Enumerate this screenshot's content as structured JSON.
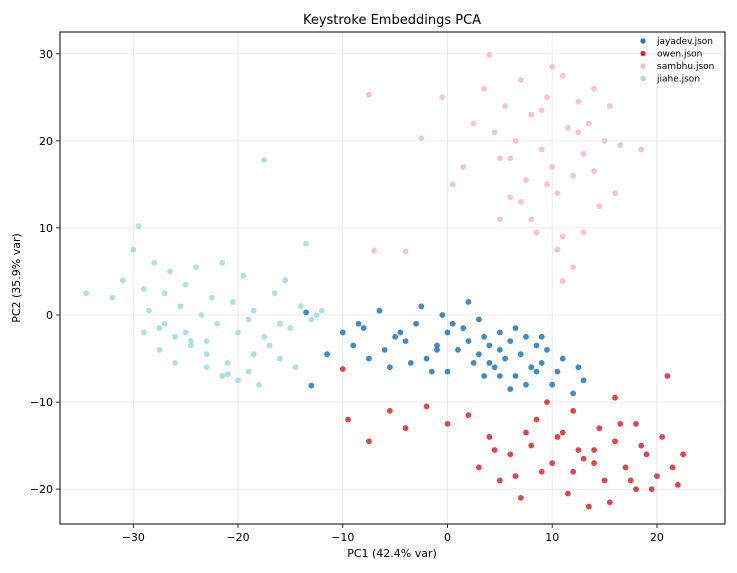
{
  "chart_data": {
    "type": "scatter",
    "title": "Keystroke Embeddings PCA",
    "xlabel": "PC1 (42.4% var)",
    "ylabel": "PC2 (35.9% var)",
    "xlim": [
      -37,
      26.5
    ],
    "ylim": [
      -24,
      32.5
    ],
    "xticks": [
      -30,
      -20,
      -10,
      0,
      10,
      20
    ],
    "xtick_labels": [
      "−30",
      "−20",
      "−10",
      "0",
      "10",
      "20"
    ],
    "yticks": [
      -20,
      -10,
      0,
      10,
      20,
      30
    ],
    "ytick_labels": [
      "−20",
      "−10",
      "0",
      "10",
      "20",
      "30"
    ],
    "grid": true,
    "legend_position": "top-right",
    "series": [
      {
        "name": "jayadev.json",
        "color": "#1f77b4",
        "x": [
          -13.0,
          -13.5,
          -10.0,
          -9.0,
          -8.0,
          -6.0,
          -5.0,
          -4.0,
          -3.0,
          -2.0,
          -1.0,
          0.0,
          0.0,
          1.0,
          1.5,
          2.0,
          2.5,
          3.0,
          3.5,
          4.0,
          4.5,
          5.0,
          5.0,
          5.5,
          6.0,
          6.5,
          7.0,
          7.5,
          8.0,
          8.5,
          9.0,
          9.5,
          10.0,
          10.5,
          11.0,
          12.0,
          13.0,
          -11.5,
          -8.5,
          -7.5,
          -6.5,
          -5.5,
          -4.5,
          -3.5,
          -2.5,
          -1.5,
          -0.5,
          0.5,
          2.0,
          3.5,
          6.0,
          9.0,
          12.5,
          -1.0,
          3.0,
          4.0,
          5.0,
          6.5,
          7.5,
          8.5
        ],
        "y": [
          -8.1,
          0.3,
          -2.0,
          -3.5,
          -1.5,
          -4.0,
          -2.5,
          -3.0,
          -1.0,
          -5.0,
          -3.5,
          -2.0,
          -6.5,
          -4.0,
          -1.5,
          -3.0,
          -5.5,
          -4.5,
          -2.5,
          -3.5,
          -6.0,
          -4.0,
          -2.0,
          -5.0,
          -3.0,
          -7.0,
          -4.5,
          -2.5,
          -6.0,
          -3.5,
          -5.5,
          -4.0,
          -8.0,
          -6.5,
          -5.0,
          -9.0,
          -7.5,
          -4.5,
          -1.0,
          -5.0,
          0.5,
          -6.0,
          -2.0,
          -5.5,
          1.0,
          -6.5,
          0.0,
          -1.0,
          1.5,
          -7.0,
          -8.5,
          -2.5,
          -6.0,
          -4.0,
          -0.5,
          -5.5,
          -7.0,
          -1.5,
          -8.0,
          -6.5
        ]
      },
      {
        "name": "owen.json",
        "color": "#d62728",
        "x": [
          -10.0,
          -9.5,
          -7.5,
          -5.5,
          -4.0,
          -2.0,
          0.0,
          2.0,
          4.0,
          6.0,
          8.0,
          10.0,
          11.0,
          12.0,
          13.0,
          14.0,
          15.0,
          16.0,
          17.0,
          18.0,
          19.0,
          20.0,
          21.0,
          22.0,
          22.5,
          3.0,
          5.0,
          7.0,
          9.0,
          11.5,
          13.5,
          15.5,
          17.5,
          19.5,
          21.5,
          8.5,
          10.5,
          12.5,
          14.5,
          16.5,
          18.5,
          6.5,
          9.5,
          12.0,
          14.0,
          16.0,
          18.0,
          20.5,
          4.5,
          7.5
        ],
        "y": [
          -6.2,
          -12.0,
          -14.5,
          -11.0,
          -13.0,
          -10.5,
          -12.5,
          -11.5,
          -14.0,
          -16.0,
          -15.0,
          -17.0,
          -13.5,
          -18.0,
          -16.5,
          -15.5,
          -19.0,
          -14.5,
          -17.5,
          -20.0,
          -16.0,
          -18.5,
          -7.0,
          -19.5,
          -16.0,
          -17.5,
          -19.0,
          -21.0,
          -18.0,
          -20.5,
          -22.0,
          -21.5,
          -19.0,
          -20.0,
          -17.5,
          -12.0,
          -14.0,
          -15.5,
          -13.0,
          -12.5,
          -15.0,
          -18.5,
          -10.0,
          -11.0,
          -17.0,
          -9.5,
          -12.5,
          -14.0,
          -15.5,
          -13.5
        ]
      },
      {
        "name": "sambhu.json",
        "color": "#f7b6d2",
        "x": [
          -7.5,
          -7.0,
          -4.0,
          -2.5,
          -0.5,
          0.5,
          1.5,
          2.5,
          3.5,
          4.0,
          4.5,
          5.0,
          5.5,
          6.0,
          6.5,
          7.0,
          7.5,
          8.0,
          8.5,
          9.0,
          9.5,
          10.0,
          10.5,
          11.0,
          11.5,
          12.0,
          12.5,
          13.0,
          13.5,
          14.0,
          14.5,
          15.0,
          15.5,
          16.0,
          16.5,
          18.5,
          8.0,
          9.0,
          11.0,
          12.0,
          13.0,
          7.0,
          10.0,
          12.5,
          5.0,
          14.0,
          11.0,
          9.5,
          10.5,
          6.0
        ],
        "y": [
          25.3,
          7.4,
          7.3,
          20.3,
          25.0,
          15.0,
          17.0,
          22.0,
          26.0,
          29.9,
          21.0,
          18.0,
          24.0,
          13.5,
          20.0,
          27.0,
          15.5,
          23.0,
          9.5,
          19.0,
          25.0,
          17.0,
          14.0,
          27.5,
          21.5,
          16.0,
          24.5,
          18.5,
          22.0,
          26.0,
          12.5,
          20.0,
          24.0,
          14.0,
          19.5,
          19.0,
          11.0,
          23.5,
          3.9,
          5.5,
          9.5,
          13.0,
          28.5,
          21.0,
          11.0,
          16.5,
          9.0,
          15.0,
          7.5,
          18.0
        ]
      },
      {
        "name": "jiahe.json",
        "color": "#9edae5",
        "x": [
          -34.5,
          -32.0,
          -31.0,
          -30.0,
          -29.5,
          -29.0,
          -28.5,
          -28.0,
          -27.5,
          -27.0,
          -26.5,
          -26.0,
          -25.5,
          -25.0,
          -24.5,
          -24.0,
          -23.5,
          -23.0,
          -22.5,
          -22.0,
          -21.5,
          -21.0,
          -20.5,
          -20.0,
          -19.5,
          -19.0,
          -18.5,
          -18.0,
          -17.5,
          -17.0,
          -16.5,
          -16.0,
          -15.5,
          -15.0,
          -14.5,
          -14.0,
          -13.5,
          -13.0,
          -12.5,
          -12.0,
          -29.0,
          -27.5,
          -26.0,
          -24.5,
          -23.0,
          -21.5,
          -20.0,
          -18.5,
          -17.5,
          -16.0,
          -23.0,
          -21.0,
          -25.0,
          -27.0,
          -19.0
        ],
        "y": [
          2.5,
          2.0,
          4.0,
          7.5,
          10.2,
          3.0,
          0.5,
          6.0,
          -1.5,
          2.5,
          5.0,
          -2.5,
          1.0,
          3.5,
          -3.0,
          5.5,
          0.0,
          -4.5,
          2.0,
          -1.0,
          6.0,
          -5.5,
          1.5,
          -2.0,
          4.5,
          -6.5,
          0.5,
          -8.0,
          17.8,
          -3.5,
          2.5,
          -5.0,
          4.0,
          -1.5,
          -6.0,
          1.0,
          8.2,
          -0.5,
          0.0,
          0.5,
          -2.0,
          -4.0,
          -5.5,
          -3.5,
          -6.0,
          -7.0,
          -7.5,
          -4.5,
          -2.5,
          -1.0,
          -3.0,
          -6.8,
          -2.0,
          -1.0,
          -0.5
        ]
      }
    ]
  }
}
